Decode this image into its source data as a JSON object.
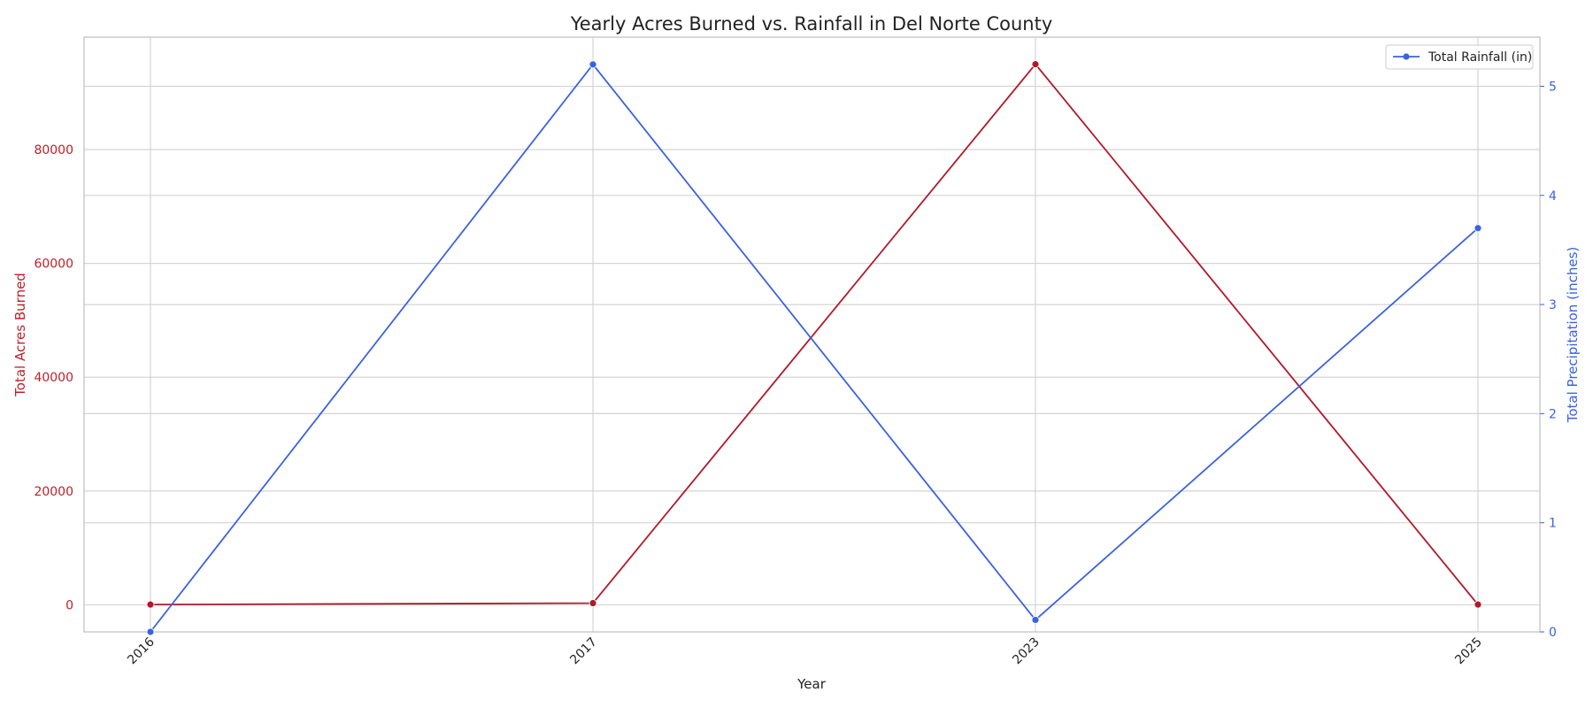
{
  "chart_data": {
    "type": "line",
    "title": "Yearly Acres Burned vs. Rainfall in Del Norte County",
    "xlabel": "Year",
    "ylabel_left": "Total Acres Burned",
    "ylabel_right": "Total Precipitation (inches)",
    "categories": [
      "2016",
      "2017",
      "2023",
      "2025"
    ],
    "y_left_lim": [
      -4750,
      99750
    ],
    "y_left_ticks": [
      0,
      20000,
      40000,
      60000,
      80000
    ],
    "y_left_tick_labels": [
      "0",
      "20000",
      "40000",
      "60000",
      "80000"
    ],
    "y_right_lim": [
      0,
      5.45
    ],
    "y_right_ticks": [
      0,
      1,
      2,
      3,
      4,
      5
    ],
    "y_right_tick_labels": [
      "0",
      "1",
      "2",
      "3",
      "4",
      "5"
    ],
    "grid": true,
    "legend_position": "top-right",
    "series": [
      {
        "name": "",
        "axis": "left",
        "color": "#b2182b",
        "values": [
          50,
          300,
          95000,
          50
        ]
      },
      {
        "name": "Total Rainfall (in)",
        "axis": "right",
        "color": "#3a62e0",
        "values": [
          0.0,
          5.2,
          0.11,
          3.7
        ]
      }
    ],
    "colors": {
      "left_axis": "#c0202a",
      "right_axis": "#3a62e0"
    }
  }
}
